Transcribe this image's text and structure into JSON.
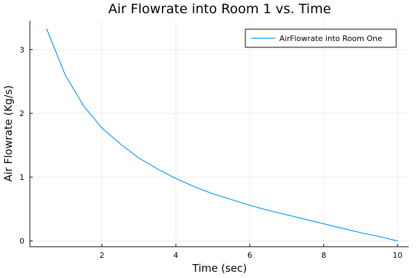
{
  "chart_data": {
    "type": "line",
    "title": "Air Flowrate into Room 1 vs. Time",
    "xlabel": "Time (sec)",
    "ylabel": "Air Flowrate (Kg/s)",
    "xlim": [
      0.05,
      10.3
    ],
    "ylim": [
      -0.09,
      3.45
    ],
    "xticks": [
      2,
      4,
      6,
      8,
      10
    ],
    "xtick_labels": [
      "2",
      "4",
      "6",
      "8",
      "10"
    ],
    "yticks": [
      0,
      1,
      2,
      3
    ],
    "ytick_labels": [
      "0",
      "1",
      "2",
      "3"
    ],
    "grid": true,
    "legend_position": "top-right",
    "series": [
      {
        "name": "AirFlowrate into Room  One",
        "color": "#009af9",
        "x": [
          0.5,
          1.0,
          1.5,
          2.0,
          2.5,
          3.0,
          3.5,
          4.0,
          4.5,
          5.0,
          5.5,
          6.0,
          6.5,
          7.0,
          7.5,
          8.0,
          8.5,
          9.0,
          9.5,
          10.0
        ],
        "y": [
          3.33,
          2.61,
          2.12,
          1.77,
          1.52,
          1.3,
          1.13,
          0.98,
          0.85,
          0.74,
          0.65,
          0.56,
          0.48,
          0.41,
          0.34,
          0.27,
          0.2,
          0.13,
          0.07,
          0.0
        ]
      }
    ]
  }
}
